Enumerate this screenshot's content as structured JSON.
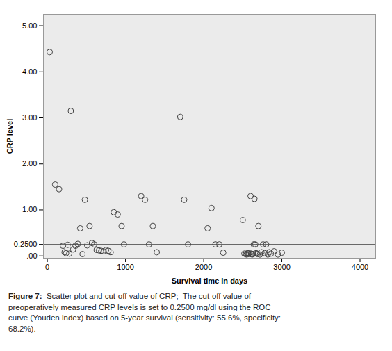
{
  "chart_data": {
    "type": "scatter",
    "x": [
      30,
      100,
      150,
      200,
      220,
      240,
      260,
      280,
      300,
      330,
      360,
      390,
      420,
      450,
      480,
      510,
      540,
      570,
      600,
      630,
      660,
      690,
      720,
      750,
      780,
      810,
      850,
      900,
      950,
      980,
      1200,
      1250,
      1300,
      1350,
      1400,
      1700,
      1750,
      1800,
      2050,
      2100,
      2150,
      2200,
      2250,
      2500,
      2520,
      2540,
      2550,
      2560,
      2570,
      2580,
      2590,
      2600,
      2610,
      2620,
      2630,
      2640,
      2650,
      2660,
      2670,
      2680,
      2690,
      2700,
      2720,
      2740,
      2760,
      2780,
      2800,
      2820,
      2840,
      2860,
      2900,
      2950,
      3000
    ],
    "values": [
      4.43,
      1.55,
      1.45,
      0.22,
      0.08,
      0.06,
      0.24,
      0.05,
      3.15,
      0.14,
      0.22,
      0.26,
      0.6,
      0.04,
      1.22,
      0.23,
      0.65,
      0.28,
      0.25,
      0.13,
      0.12,
      0.11,
      0.1,
      0.13,
      0.11,
      0.08,
      0.95,
      0.9,
      0.65,
      0.25,
      1.3,
      1.22,
      0.25,
      0.65,
      0.08,
      3.02,
      1.22,
      0.25,
      0.6,
      1.04,
      0.25,
      0.25,
      0.07,
      0.78,
      0.05,
      0.04,
      0.03,
      0.06,
      0.05,
      0.06,
      0.04,
      1.3,
      0.05,
      0.03,
      0.04,
      0.25,
      1.24,
      0.25,
      0.06,
      0.05,
      0.04,
      0.65,
      0.03,
      0.08,
      0.25,
      0.06,
      0.25,
      0.03,
      0.08,
      0.05,
      0.1,
      0.03,
      0.07
    ],
    "color": "#444444",
    "marker": "circle",
    "cutoff": 0.25,
    "xlabel": "Survival time in days",
    "ylabel": "CRP level",
    "xlim": [
      -50,
      4200
    ],
    "ylim": [
      -0.05,
      5.25
    ],
    "xticks": [
      0,
      1000,
      2000,
      3000,
      4000
    ],
    "yticks": [
      {
        "value": 0,
        "label": ".00"
      },
      {
        "value": 0.25,
        "label": "0.2500"
      },
      {
        "value": 1,
        "label": "1.00"
      },
      {
        "value": 2,
        "label": "2.00"
      },
      {
        "value": 3,
        "label": "3.00"
      },
      {
        "value": 4,
        "label": "4.00"
      },
      {
        "value": 5,
        "label": "5.00"
      }
    ],
    "grid": false,
    "caption": "Figure 7:  Scatter plot and cut-off value of CRP;  The cut-off value of\npreoperatively measured CRP levels is set to 0.2500 mg/dl using the ROC\ncurve (Youden index) based on 5-year survival (sensitivity: 55.6%, specificity:\n68.2%)."
  }
}
